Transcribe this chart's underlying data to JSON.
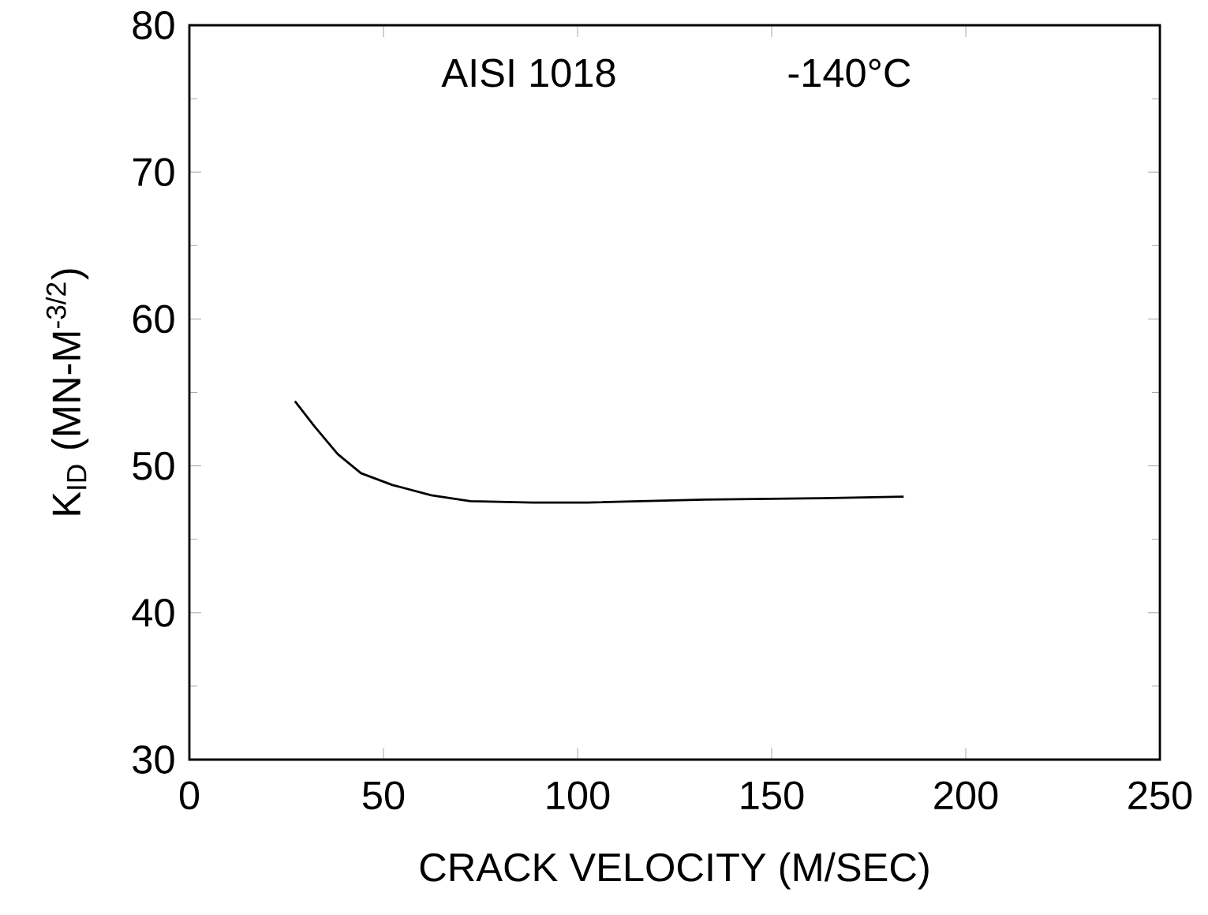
{
  "chart_data": {
    "type": "line",
    "xlabel": "CRACK VELOCITY  (M/SEC)",
    "ylabel": "K$_{ID}$  (MN-M$^{-3/2}$)",
    "annotations": [
      {
        "text": "AISI 1018"
      },
      {
        "text": "-140°C"
      }
    ],
    "x": [
      27.2,
      32.2,
      38.2,
      44.2,
      52.3,
      62.3,
      72.4,
      88.5,
      102.6,
      132.7,
      162.9,
      184
    ],
    "series": [
      {
        "color": "#000000",
        "values": [
          54.4,
          52.7,
          50.8,
          49.5,
          48.7,
          48.0,
          47.6,
          47.5,
          47.5,
          47.7,
          47.8,
          47.9
        ]
      }
    ],
    "xlim": [
      0,
      250
    ],
    "xticks": [
      0,
      50,
      100,
      150,
      200,
      250
    ],
    "ylim": [
      30,
      80
    ],
    "yticks": [
      30,
      {
        "value": 35,
        "label": null
      },
      40,
      {
        "value": 45,
        "label": null
      },
      50,
      {
        "value": 55,
        "label": null
      },
      60,
      {
        "value": 65,
        "label": null
      },
      70,
      {
        "value": 75,
        "label": null
      },
      80
    ],
    "grid": false,
    "marker": "none",
    "line_style": "solid"
  }
}
